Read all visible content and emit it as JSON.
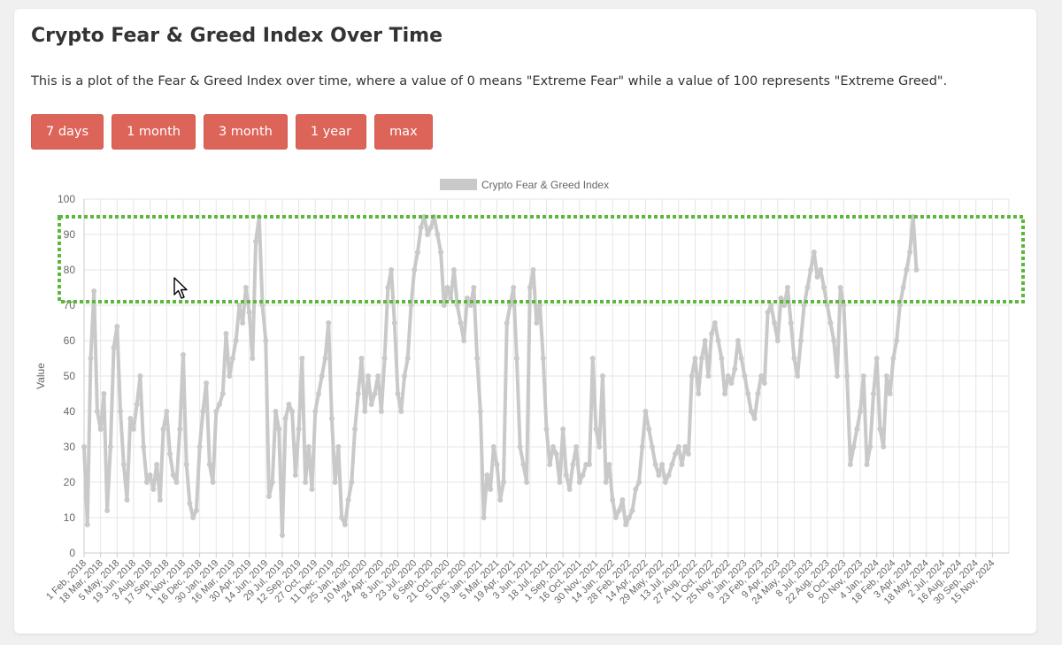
{
  "header": {
    "title": "Crypto Fear & Greed Index Over Time",
    "description": "This is a plot of the Fear & Greed Index over time, where a value of 0 means \"Extreme Fear\" while a value of 100 represents \"Extreme Greed\"."
  },
  "range_buttons": [
    "7 days",
    "1 month",
    "3 month",
    "1 year",
    "max"
  ],
  "colors": {
    "button": "#dd6459",
    "series": "#c9c9c9",
    "highlight_box": "#5cb83a"
  },
  "annotation": {
    "type": "dotted-rectangle",
    "y_from": 71,
    "y_to": 95
  },
  "chart_data": {
    "type": "line",
    "title": "",
    "legend": {
      "entry": "Crypto Fear & Greed Index",
      "position": "top"
    },
    "ylabel": "Value",
    "xlabel": "",
    "ylim": [
      0,
      100
    ],
    "yticks": [
      0,
      10,
      20,
      30,
      40,
      50,
      60,
      70,
      80,
      90,
      100
    ],
    "grid": true,
    "x_tick_labels": [
      "1 Feb, 2018",
      "18 Mar, 2018",
      "5 May, 2018",
      "19 Jun, 2018",
      "3 Aug, 2018",
      "17 Sep, 2018",
      "1 Nov, 2018",
      "16 Dec, 2018",
      "30 Jan, 2019",
      "16 Mar, 2019",
      "30 Apr, 2019",
      "14 Jun, 2019",
      "29 Jul, 2019",
      "12 Sep, 2019",
      "27 Oct, 2019",
      "11 Dec, 2019",
      "25 Jan, 2020",
      "10 Mar, 2020",
      "24 Apr, 2020",
      "8 Jun, 2020",
      "23 Jul, 2020",
      "6 Sep, 2020",
      "21 Oct, 2020",
      "5 Dec, 2020",
      "19 Jan, 2021",
      "5 Mar, 2021",
      "19 Apr, 2021",
      "3 Jun, 2021",
      "18 Jul, 2021",
      "1 Sep, 2021",
      "16 Oct, 2021",
      "30 Nov, 2021",
      "14 Jan, 2022",
      "28 Feb, 2022",
      "14 Apr, 2022",
      "29 May, 2022",
      "13 Jul, 2022",
      "27 Aug, 2022",
      "11 Oct, 2022",
      "25 Nov, 2022",
      "9 Jan, 2023",
      "23 Feb, 2023",
      "9 Apr, 2023",
      "24 May, 2023",
      "8 Jul, 2023",
      "22 Aug, 2023",
      "6 Oct, 2023",
      "20 Nov, 2023",
      "4 Jan, 2024",
      "18 Feb, 2024",
      "3 Apr, 2024",
      "18 May, 2024",
      "2 Jul, 2024",
      "16 Aug, 2024",
      "30 Sep, 2024",
      "15 Nov, 2024"
    ],
    "series": [
      {
        "x_tick_index": [
          0,
          0.2,
          0.4,
          0.6,
          0.8,
          1,
          1.2,
          1.4,
          1.6,
          1.8,
          2,
          2.2,
          2.4,
          2.6,
          2.8,
          3,
          3.2,
          3.4,
          3.6,
          3.8,
          4,
          4.2,
          4.4,
          4.6,
          4.8,
          5,
          5.2,
          5.4,
          5.6,
          5.8,
          6,
          6.2,
          6.4,
          6.6,
          6.8,
          7,
          7.2,
          7.4,
          7.6,
          7.8,
          8,
          8.2,
          8.4,
          8.6,
          8.8,
          9,
          9.2,
          9.4,
          9.6,
          9.8,
          10,
          10.2,
          10.4,
          10.6,
          10.8,
          11,
          11.2,
          11.4,
          11.6,
          11.8,
          12,
          12.2,
          12.4,
          12.6,
          12.8,
          13,
          13.2,
          13.4,
          13.6,
          13.8,
          14,
          14.2,
          14.4,
          14.6,
          14.8,
          15,
          15.2,
          15.4,
          15.6,
          15.8,
          16,
          16.2,
          16.4,
          16.6,
          16.8,
          17,
          17.2,
          17.4,
          17.6,
          17.8,
          18,
          18.2,
          18.4,
          18.6,
          18.8,
          19,
          19.2,
          19.4,
          19.6,
          19.8,
          20,
          20.2,
          20.4,
          20.6,
          20.8,
          21,
          21.2,
          21.4,
          21.6,
          21.8,
          22,
          22.2,
          22.4,
          22.6,
          22.8,
          23,
          23.2,
          23.4,
          23.6,
          23.8,
          24,
          24.2,
          24.4,
          24.6,
          24.8,
          25,
          25.2,
          25.4,
          25.6,
          25.8,
          26,
          26.2,
          26.4,
          26.6,
          26.8,
          27,
          27.2,
          27.4,
          27.6,
          27.8,
          28,
          28.2,
          28.4,
          28.6,
          28.8,
          29,
          29.2,
          29.4,
          29.6,
          29.8,
          30,
          30.2,
          30.4,
          30.6,
          30.8,
          31,
          31.2,
          31.4,
          31.6,
          31.8,
          32,
          32.2,
          32.4,
          32.6,
          32.8,
          33,
          33.2,
          33.4,
          33.6,
          33.8,
          34,
          34.2,
          34.4,
          34.6,
          34.8,
          35,
          35.2,
          35.4,
          35.6,
          35.8,
          36,
          36.2,
          36.4,
          36.6,
          36.8,
          37,
          37.2,
          37.4,
          37.6,
          37.8,
          38,
          38.2,
          38.4,
          38.6,
          38.8,
          39,
          39.2,
          39.4,
          39.6,
          39.8,
          40,
          40.2,
          40.4,
          40.6,
          40.8,
          41,
          41.2,
          41.4,
          41.6,
          41.8,
          42,
          42.2,
          42.4,
          42.6,
          42.8,
          43,
          43.2,
          43.4,
          43.6,
          43.8,
          44,
          44.2,
          44.4,
          44.6,
          44.8,
          45,
          45.2,
          45.4,
          45.6,
          45.8,
          46,
          46.2,
          46.4,
          46.6,
          46.8,
          47,
          47.2,
          47.4,
          47.6,
          47.8,
          48,
          48.2,
          48.4,
          48.6,
          48.8,
          49,
          49.2,
          49.4,
          49.6,
          49.8,
          50,
          50.2,
          50.4,
          50.6,
          50.8,
          51,
          51.2,
          51.4,
          51.6,
          51.8,
          52,
          52.2,
          52.4,
          52.6,
          52.8,
          53,
          53.2,
          53.4,
          53.6,
          53.8,
          54,
          54.2,
          54.4,
          54.6,
          54.8,
          55,
          55.2,
          55.4
        ],
        "values": [
          30,
          8,
          55,
          74,
          40,
          35,
          45,
          12,
          30,
          58,
          64,
          40,
          25,
          15,
          38,
          35,
          42,
          50,
          30,
          20,
          22,
          18,
          25,
          15,
          35,
          40,
          28,
          22,
          20,
          35,
          56,
          25,
          14,
          10,
          12,
          30,
          40,
          48,
          25,
          20,
          40,
          42,
          45,
          62,
          50,
          55,
          60,
          70,
          65,
          75,
          68,
          55,
          88,
          95,
          70,
          60,
          16,
          20,
          40,
          35,
          5,
          38,
          42,
          40,
          22,
          35,
          55,
          20,
          30,
          18,
          40,
          45,
          50,
          55,
          65,
          38,
          20,
          30,
          10,
          8,
          15,
          20,
          35,
          45,
          55,
          40,
          50,
          42,
          45,
          50,
          40,
          55,
          75,
          80,
          65,
          45,
          40,
          50,
          55,
          70,
          80,
          85,
          92,
          95,
          90,
          92,
          95,
          90,
          85,
          70,
          75,
          72,
          80,
          70,
          65,
          60,
          72,
          70,
          75,
          55,
          40,
          10,
          22,
          18,
          30,
          25,
          15,
          20,
          65,
          70,
          75,
          55,
          30,
          25,
          20,
          75,
          80,
          65,
          70,
          55,
          35,
          25,
          30,
          28,
          20,
          35,
          22,
          18,
          25,
          30,
          20,
          22,
          25,
          25,
          55,
          35,
          30,
          50,
          20,
          25,
          15,
          10,
          12,
          15,
          8,
          10,
          12,
          18,
          20,
          30,
          40,
          35,
          30,
          25,
          22,
          25,
          20,
          22,
          25,
          28,
          30,
          25,
          30,
          28,
          50,
          55,
          45,
          55,
          60,
          50,
          62,
          65,
          60,
          55,
          45,
          50,
          48,
          52,
          60,
          55,
          50,
          45,
          40,
          38,
          45,
          50,
          48,
          68,
          70,
          65,
          60,
          72,
          70,
          75,
          65,
          55,
          50,
          60,
          70,
          75,
          80,
          85,
          78,
          80,
          75,
          70,
          65,
          60,
          50,
          75,
          70,
          50,
          25,
          30,
          35,
          40,
          50,
          25,
          30,
          45,
          55,
          35,
          30,
          50,
          45,
          55,
          60,
          70,
          75,
          80,
          85,
          95,
          80
        ]
      }
    ]
  },
  "cursor": "arrow-cursor-icon"
}
